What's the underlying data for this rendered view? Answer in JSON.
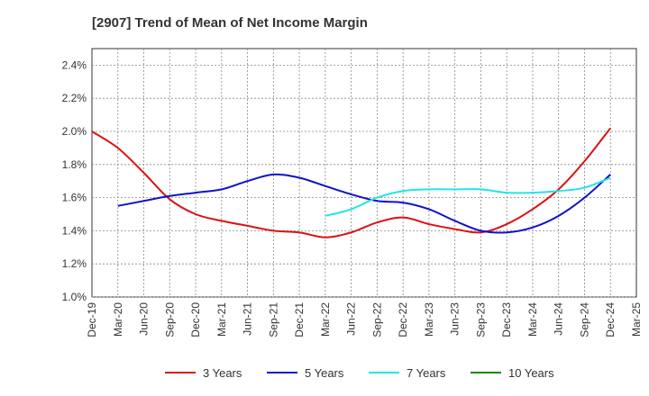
{
  "chart_data": {
    "type": "line",
    "title": "[2907]  Trend of Mean of Net Income Margin",
    "xlabel": "",
    "ylabel": "",
    "x": [
      "Dec-19",
      "Mar-20",
      "Jun-20",
      "Sep-20",
      "Dec-20",
      "Mar-21",
      "Jun-21",
      "Sep-21",
      "Dec-21",
      "Mar-22",
      "Jun-22",
      "Sep-22",
      "Dec-22",
      "Mar-23",
      "Jun-23",
      "Sep-23",
      "Dec-23",
      "Mar-24",
      "Jun-24",
      "Sep-24",
      "Dec-24",
      "Mar-25"
    ],
    "ylim": [
      1.0,
      2.5
    ],
    "yticks": [
      1.0,
      1.2,
      1.4,
      1.6,
      1.8,
      2.0,
      2.2,
      2.4
    ],
    "ytick_labels": [
      "1.0%",
      "1.2%",
      "1.4%",
      "1.6%",
      "1.8%",
      "2.0%",
      "2.2%",
      "2.4%"
    ],
    "grid": true,
    "legend_position": "bottom",
    "series": [
      {
        "name": "3 Years",
        "color": "#dd1111",
        "values": [
          2.0,
          1.9,
          1.75,
          1.59,
          1.5,
          1.46,
          1.43,
          1.4,
          1.39,
          1.36,
          1.39,
          1.45,
          1.48,
          1.44,
          1.41,
          1.39,
          1.44,
          1.53,
          1.65,
          1.82,
          2.02,
          null
        ]
      },
      {
        "name": "5 Years",
        "color": "#1111cc",
        "values": [
          null,
          1.55,
          1.58,
          1.61,
          1.63,
          1.65,
          1.7,
          1.74,
          1.72,
          1.67,
          1.62,
          1.58,
          1.57,
          1.53,
          1.46,
          1.4,
          1.39,
          1.42,
          1.49,
          1.6,
          1.74,
          null
        ]
      },
      {
        "name": "7 Years",
        "color": "#22e5e5",
        "values": [
          null,
          null,
          null,
          null,
          null,
          null,
          null,
          null,
          null,
          1.49,
          1.53,
          1.6,
          1.64,
          1.65,
          1.65,
          1.65,
          1.63,
          1.63,
          1.64,
          1.66,
          1.72,
          null
        ]
      },
      {
        "name": "10 Years",
        "color": "#118811",
        "values": [
          null,
          null,
          null,
          null,
          null,
          null,
          null,
          null,
          null,
          null,
          null,
          null,
          null,
          null,
          null,
          null,
          null,
          null,
          null,
          null,
          null,
          null
        ]
      }
    ]
  }
}
